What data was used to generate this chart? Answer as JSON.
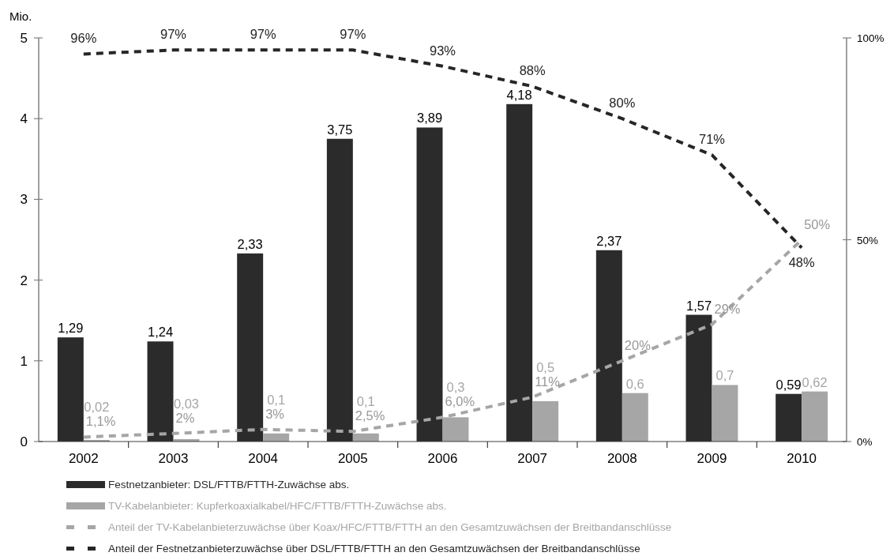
{
  "chart_data": {
    "type": "bar",
    "ylabel": "Mio.",
    "categories": [
      "2002",
      "2003",
      "2004",
      "2005",
      "2006",
      "2007",
      "2008",
      "2009",
      "2010"
    ],
    "ylim": [
      0,
      5
    ],
    "yticks": [
      0,
      1,
      2,
      3,
      4,
      5
    ],
    "y2lim": [
      0,
      100
    ],
    "y2ticks": [
      {
        "value": 0,
        "label": "0%"
      },
      {
        "value": 50,
        "label": "50%"
      },
      {
        "value": 100,
        "label": "100%"
      }
    ],
    "legend": "bottom",
    "series": [
      {
        "name": "Festnetzanbieter: DSL/FTTB/FTTH-Zuwächse abs.",
        "color": "#2b2b2b",
        "values": [
          1.29,
          1.24,
          2.33,
          3.75,
          3.89,
          4.18,
          2.37,
          1.57,
          0.59
        ],
        "value_labels": [
          "1,29",
          "1,24",
          "2,33",
          "3,75",
          "3,89",
          "4,18",
          "2,37",
          "1,57",
          "0,59"
        ]
      },
      {
        "name": "TV-Kabelanbieter: Kupferkoaxialkabel/HFC/FTTB/FTTH-Zuwächse abs.",
        "color": "#a6a6a6",
        "values": [
          0.02,
          0.03,
          0.1,
          0.1,
          0.3,
          0.5,
          0.6,
          0.7,
          0.62
        ],
        "value_labels": [
          "0,02",
          "0,03",
          "0,1",
          "0,1",
          "0,3",
          "0,5",
          "0,6",
          "0,7",
          "0,62"
        ]
      },
      {
        "name": "Anteil der TV-Kabelanbieterzuwächse über Koax/HFC/FTTB/FTTH an den Gesamtzuwächsen der Breitbandanschlüsse",
        "type": "line",
        "axis": "y2",
        "line_style": "dashed",
        "color": "#a6a6a6",
        "values": [
          1.1,
          2,
          3,
          2.5,
          6.0,
          11,
          20,
          29,
          50
        ],
        "value_labels": [
          "1,1%",
          "2%",
          "3%",
          "2,5%",
          "6,0%",
          "11%",
          "20%",
          "29%",
          "50%"
        ]
      },
      {
        "name": "Anteil der Festnetzanbieterzuwächse über DSL/FTTB/FTTH an den Gesamtzuwächsen der Breitbandanschlüsse",
        "type": "line",
        "axis": "y2",
        "line_style": "dashed",
        "color": "#262626",
        "values": [
          96,
          97,
          97,
          97,
          93,
          88,
          80,
          71,
          48
        ],
        "value_labels": [
          "96%",
          "97%",
          "97%",
          "97%",
          "93%",
          "88%",
          "80%",
          "71%",
          "48%"
        ]
      }
    ]
  }
}
